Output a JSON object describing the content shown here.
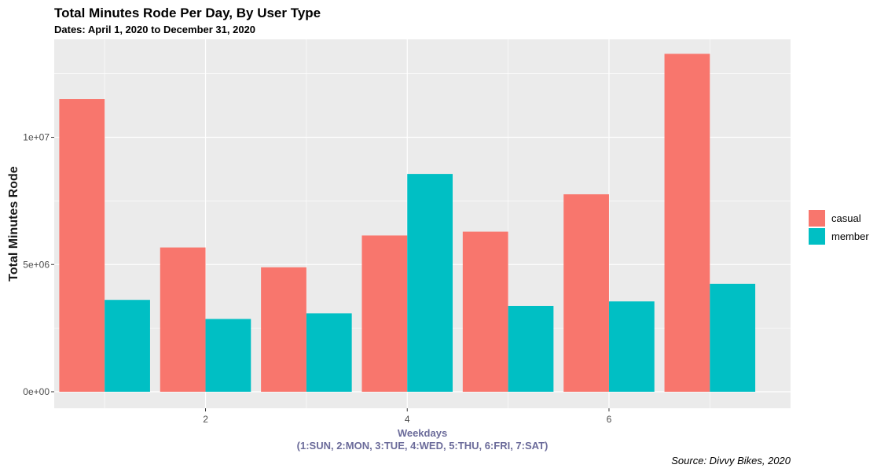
{
  "chart_data": {
    "type": "bar",
    "title": "Total Minutes Rode Per Day, By User Type",
    "subtitle": "Dates: April 1, 2020 to December 31, 2020",
    "xlabel_lines": [
      "Weekdays",
      "(1:SUN, 2:MON, 3:TUE, 4:WED, 5:THU, 6:FRI, 7:SAT)"
    ],
    "ylabel": "Total Minutes Rode",
    "caption": "Source: Divvy Bikes, 2020",
    "x": [
      1,
      2,
      3,
      4,
      5,
      6,
      7
    ],
    "xlim": [
      0.5,
      7.8
    ],
    "x_ticks": [
      2,
      4,
      6
    ],
    "x_tick_labels": [
      "2",
      "4",
      "6"
    ],
    "ylim": [
      -650000,
      13850000
    ],
    "y_ticks": [
      0,
      5000000,
      10000000
    ],
    "y_tick_labels": [
      "0e+00",
      "5e+06",
      "1e+07"
    ],
    "grid": true,
    "legend_position": "right",
    "series": [
      {
        "name": "casual",
        "color": "#F8766D",
        "values": [
          11500000,
          5670000,
          4890000,
          6140000,
          6290000,
          7760000,
          13280000
        ]
      },
      {
        "name": "member",
        "color": "#00BFC4",
        "values": [
          3610000,
          2860000,
          3080000,
          8560000,
          3370000,
          3550000,
          4240000
        ]
      }
    ],
    "colors": {
      "panel": "#EBEBEB",
      "grid": "#FFFFFF",
      "xlabel": "#6B6B9A"
    }
  }
}
